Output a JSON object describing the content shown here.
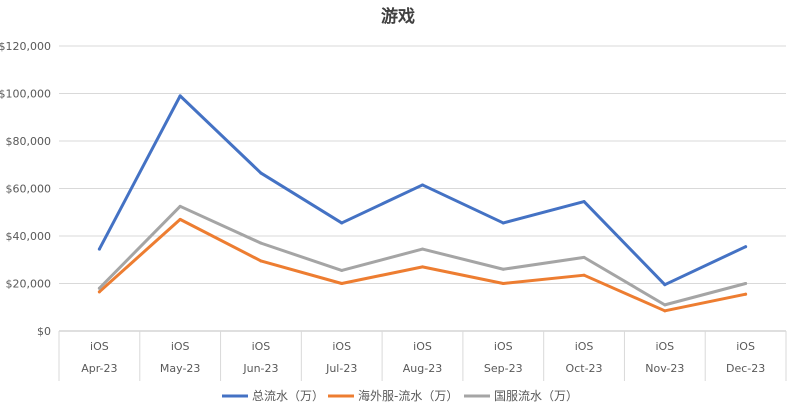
{
  "chart_data": {
    "type": "line",
    "title": "游戏",
    "categories_top": [
      "iOS",
      "iOS",
      "iOS",
      "iOS",
      "iOS",
      "iOS",
      "iOS",
      "iOS",
      "iOS"
    ],
    "categories": [
      "Apr-23",
      "May-23",
      "Jun-23",
      "Jul-23",
      "Aug-23",
      "Sep-23",
      "Oct-23",
      "Nov-23",
      "Dec-23"
    ],
    "y_ticks": [
      "$0",
      "$20,000",
      "$40,000",
      "$60,000",
      "$80,000",
      "$100,000",
      "$120,000"
    ],
    "ylim": [
      0,
      120000
    ],
    "grid": true,
    "legend_position": "bottom",
    "series": [
      {
        "name": "总流水（万）",
        "color": "#4472C4",
        "values": [
          34500,
          99000,
          66500,
          45500,
          61500,
          45500,
          54500,
          19500,
          35500
        ]
      },
      {
        "name": "海外服-流水（万）",
        "color": "#ED7D31",
        "values": [
          16500,
          47000,
          29500,
          20000,
          27000,
          20000,
          23500,
          8500,
          15500
        ]
      },
      {
        "name": "国服流水（万）",
        "color": "#A5A5A5",
        "values": [
          18000,
          52500,
          37000,
          25500,
          34500,
          26000,
          31000,
          11000,
          20000
        ]
      }
    ]
  }
}
